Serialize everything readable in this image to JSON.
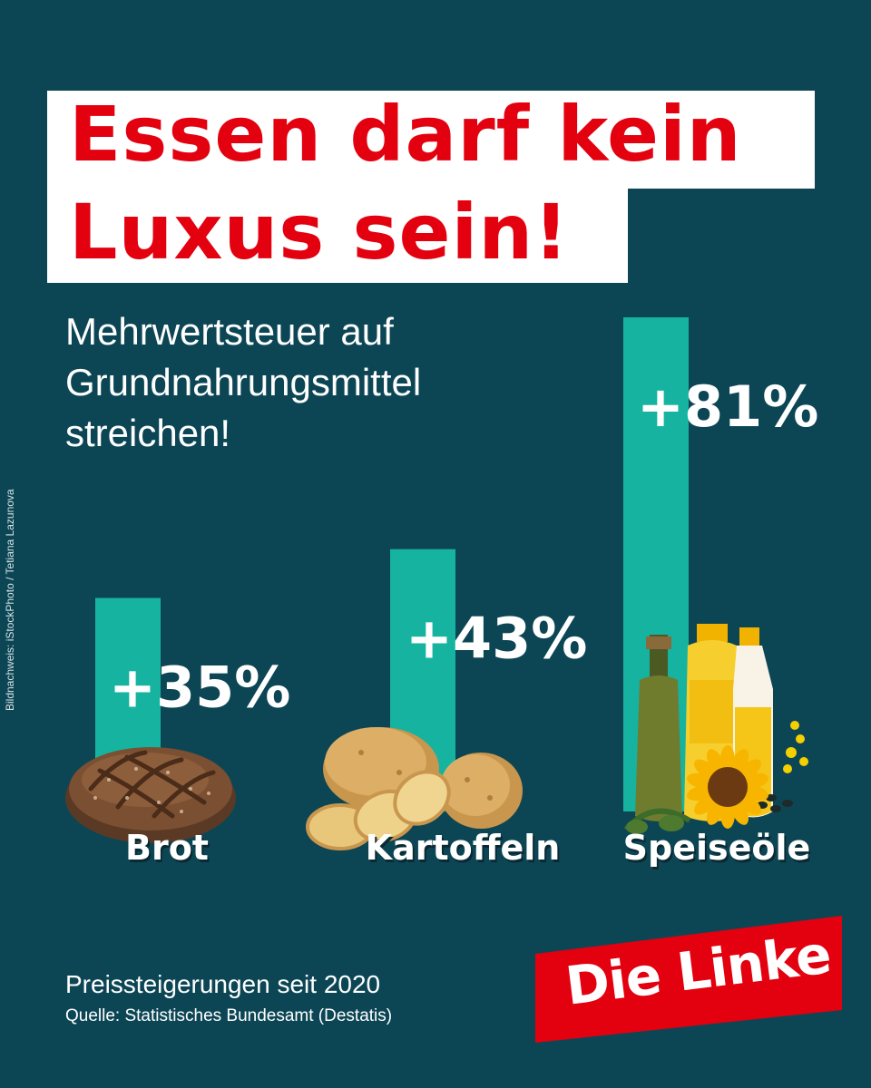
{
  "headline": {
    "line1": "Essen darf kein",
    "line2": "Luxus sein!"
  },
  "subtitle": {
    "line1": "Mehrwertsteuer auf",
    "line2": "Grundnahrungsmittel",
    "line3": "streichen!"
  },
  "credit": "Bildnachweis: iStockPhoto / Tetiana Lazunova",
  "footer": {
    "title": "Preissteigerungen seit 2020",
    "source": "Quelle: Statistisches Bundesamt (Destatis)"
  },
  "logo": {
    "text": "Die Linke"
  },
  "colors": {
    "background": "#0c4655",
    "bar": "#16b3a0",
    "headline_red": "#e3000f",
    "logo_red": "#e3000f"
  },
  "icons": [
    "bread-icon",
    "potatoes-icon",
    "oil-bottles-icon",
    "sunflower-icon"
  ],
  "chart_data": {
    "type": "bar",
    "categories": [
      "Brot",
      "Kartoffeln",
      "Speiseöle"
    ],
    "values": [
      35,
      43,
      81
    ],
    "value_labels": [
      "+35%",
      "+43%",
      "+81%"
    ],
    "title": "",
    "xlabel": "",
    "ylabel": "",
    "ylim": [
      0,
      81
    ],
    "grid": false,
    "legend": "none"
  }
}
